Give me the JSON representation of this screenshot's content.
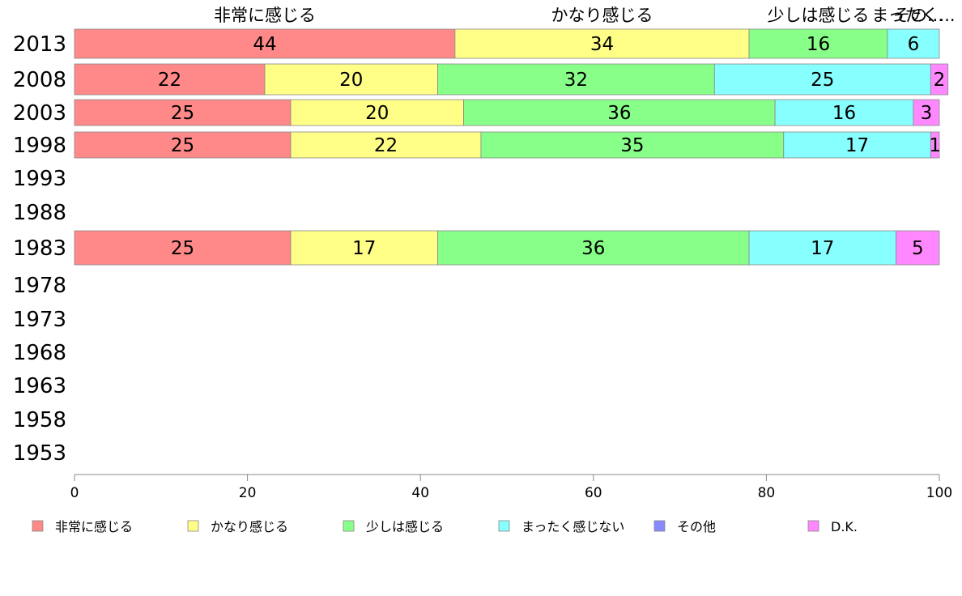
{
  "chart_data": {
    "type": "bar",
    "orientation": "horizontal",
    "stacked": true,
    "categories": [
      "2013",
      "2008",
      "2003",
      "1998",
      "1993",
      "1988",
      "1983",
      "1978",
      "1973",
      "1968",
      "1963",
      "1958",
      "1953"
    ],
    "series": [
      {
        "name": "非常に感じる",
        "color": "#ff8888",
        "values": [
          44,
          22,
          25,
          25,
          null,
          null,
          25,
          null,
          null,
          null,
          null,
          null,
          null
        ]
      },
      {
        "name": "かなり感じる",
        "color": "#ffff88",
        "values": [
          34,
          20,
          20,
          22,
          null,
          null,
          17,
          null,
          null,
          null,
          null,
          null,
          null
        ]
      },
      {
        "name": "少しは感じる",
        "color": "#88ff88",
        "values": [
          16,
          32,
          36,
          35,
          null,
          null,
          36,
          null,
          null,
          null,
          null,
          null,
          null
        ]
      },
      {
        "name": "まったく感じない",
        "color": "#88ffff",
        "values": [
          6,
          25,
          16,
          17,
          null,
          null,
          17,
          null,
          null,
          null,
          null,
          null,
          null
        ]
      },
      {
        "name": "その他",
        "color": "#8888ff",
        "values": [
          0,
          0,
          0,
          0,
          null,
          null,
          0,
          null,
          null,
          null,
          null,
          null,
          null
        ]
      },
      {
        "name": "D.K.",
        "color": "#ff88ff",
        "values": [
          0,
          2,
          3,
          1,
          null,
          null,
          5,
          null,
          null,
          null,
          null,
          null,
          null
        ]
      }
    ],
    "xlim": [
      0,
      100
    ],
    "xticks": [
      0,
      20,
      40,
      60,
      80,
      100
    ],
    "top_labels": [
      "非常に感じる",
      "かなり感じる",
      "少しは感じる",
      "まったく...",
      "その..."
    ],
    "legend_position": "bottom",
    "grid": false
  }
}
